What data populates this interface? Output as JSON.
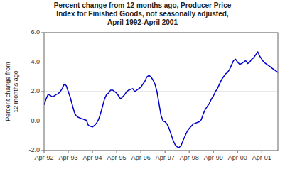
{
  "chart_data": {
    "type": "line",
    "title": "Percent change from 12 months ago, Producer Price\nIndex for Finished Goods, not seasonally adjusted,\nApril 1992-April 2001",
    "ylabel": "Percent change from\n12 months ago",
    "color": "#0000CC",
    "grid": true,
    "ylim": [
      -2.0,
      6.0
    ],
    "yticks": [
      {
        "value": -2.0,
        "label": "-2.0"
      },
      {
        "value": 0.0,
        "label": "0.0"
      },
      {
        "value": 2.0,
        "label": "2.0"
      },
      {
        "value": 4.0,
        "label": "4.0"
      },
      {
        "value": 6.0,
        "label": "6.0"
      }
    ],
    "categories": [
      "Apr-92",
      null,
      null,
      null,
      null,
      null,
      null,
      null,
      null,
      null,
      null,
      null,
      "Apr-93",
      null,
      null,
      null,
      null,
      null,
      null,
      null,
      null,
      null,
      null,
      null,
      "Apr-94",
      null,
      null,
      null,
      null,
      null,
      null,
      null,
      null,
      null,
      null,
      null,
      "Apr-95",
      null,
      null,
      null,
      null,
      null,
      null,
      null,
      null,
      null,
      null,
      null,
      "Apr-96",
      null,
      null,
      null,
      null,
      null,
      null,
      null,
      null,
      null,
      null,
      null,
      "Apr-97",
      null,
      null,
      null,
      null,
      null,
      null,
      null,
      null,
      null,
      null,
      null,
      "Apr-98",
      null,
      null,
      null,
      null,
      null,
      null,
      null,
      null,
      null,
      null,
      null,
      "Apr-99",
      null,
      null,
      null,
      null,
      null,
      null,
      null,
      null,
      null,
      null,
      null,
      "Apr-00",
      null,
      null,
      null,
      null,
      null,
      null,
      null,
      null,
      null,
      null,
      null,
      "Apr-01",
      null,
      null,
      null,
      null,
      null,
      null,
      null,
      null
    ],
    "values": [
      1.1,
      1.5,
      1.8,
      1.75,
      1.65,
      1.7,
      1.8,
      1.85,
      2.0,
      2.2,
      2.5,
      2.4,
      2.0,
      1.6,
      1.1,
      0.6,
      0.35,
      0.25,
      0.2,
      0.15,
      0.1,
      0.05,
      -0.3,
      -0.35,
      -0.4,
      -0.3,
      -0.15,
      0.1,
      0.5,
      1.0,
      1.5,
      1.8,
      1.9,
      2.1,
      2.1,
      2.0,
      1.9,
      1.7,
      1.5,
      1.65,
      1.8,
      2.0,
      2.1,
      2.15,
      2.2,
      2.0,
      2.1,
      2.2,
      2.3,
      2.5,
      2.7,
      3.0,
      3.1,
      3.0,
      2.8,
      2.5,
      2.0,
      1.2,
      0.4,
      0.0,
      -0.05,
      -0.2,
      -0.5,
      -0.9,
      -1.3,
      -1.6,
      -1.75,
      -1.8,
      -1.65,
      -1.3,
      -1.0,
      -0.7,
      -0.5,
      -0.35,
      -0.2,
      -0.15,
      -0.1,
      -0.05,
      0.1,
      0.5,
      0.8,
      1.0,
      1.2,
      1.5,
      1.7,
      2.0,
      2.2,
      2.5,
      2.8,
      3.0,
      3.2,
      3.3,
      3.5,
      3.8,
      4.1,
      4.2,
      4.0,
      3.85,
      3.9,
      4.0,
      4.1,
      3.9,
      4.0,
      4.2,
      4.3,
      4.5,
      4.7,
      4.4,
      4.2,
      4.0,
      3.9,
      3.8,
      3.7,
      3.6,
      3.5,
      3.4,
      3.3
    ]
  }
}
